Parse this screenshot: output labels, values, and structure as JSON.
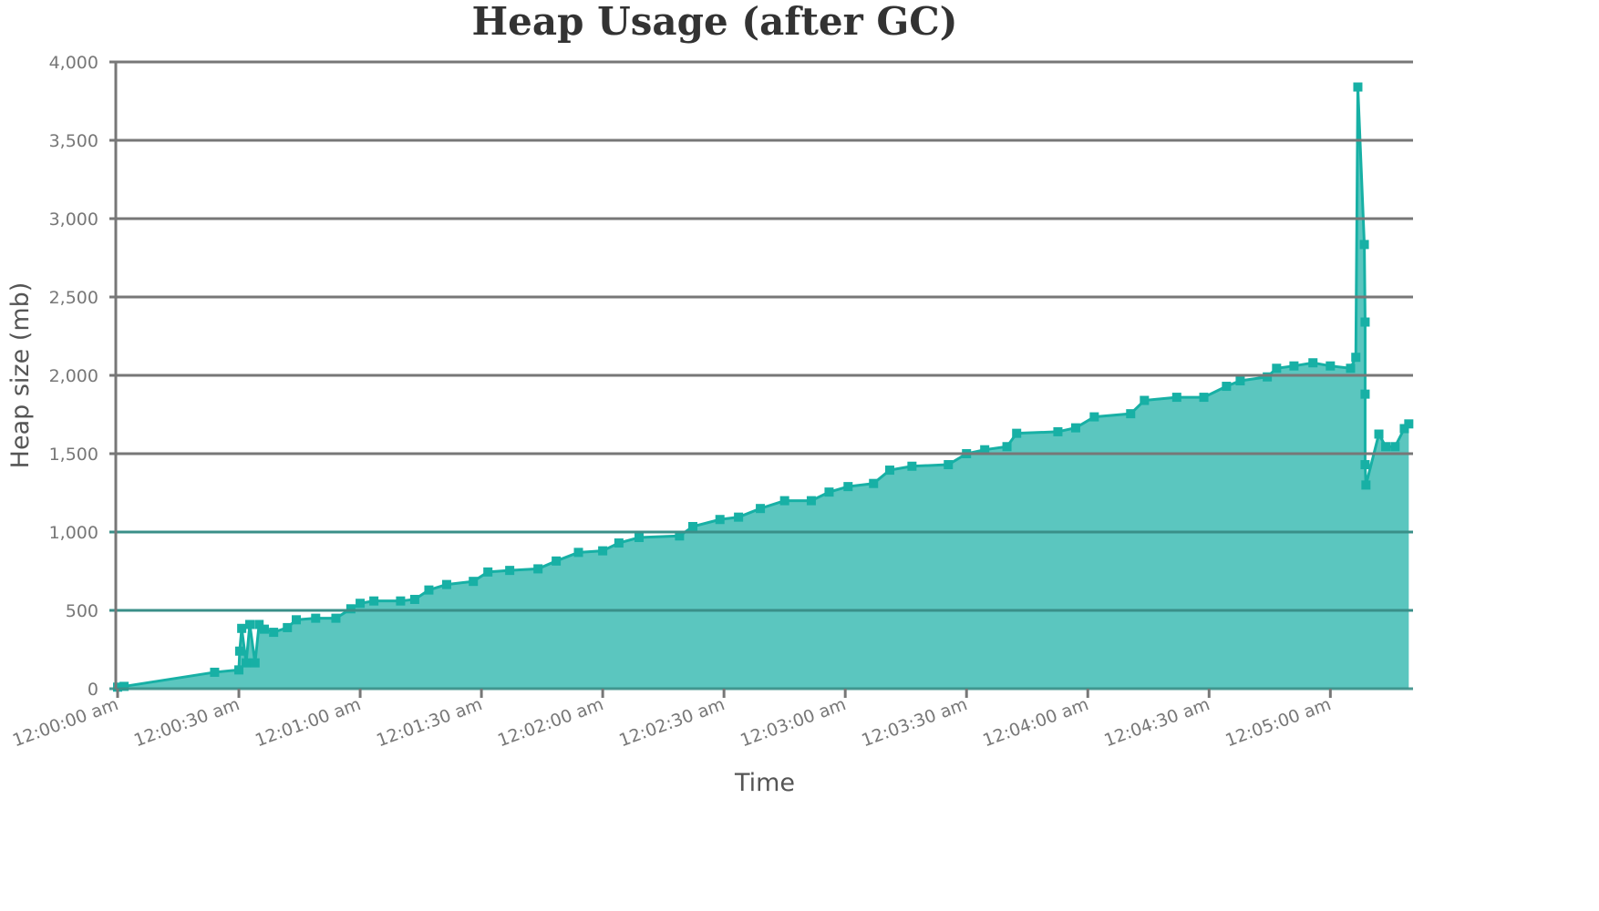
{
  "chart_data": {
    "type": "area",
    "title": "Heap Usage (after GC)",
    "xlabel": "Time",
    "ylabel": "Heap size (mb)",
    "x": [
      0,
      1.6,
      24,
      30,
      30.2,
      30.7,
      31.8,
      32.7,
      34,
      35,
      36.3,
      38.6,
      42,
      44.2,
      49,
      54,
      57.7,
      60,
      63.4,
      70,
      73.5,
      77,
      81.4,
      88,
      91.6,
      97,
      104,
      108.5,
      114,
      120,
      124,
      129,
      139,
      142.3,
      149,
      153.6,
      159,
      165,
      171.6,
      176,
      180.7,
      187,
      191,
      196.5,
      205.5,
      210,
      214.5,
      220,
      222.4,
      232.6,
      237,
      241.6,
      250.6,
      254,
      262,
      268.7,
      274.3,
      277.7,
      284.4,
      286.7,
      291,
      295.7,
      300,
      305,
      306.3,
      306.8,
      308.4,
      308.6,
      308.6,
      308.6,
      308.8,
      312,
      313.7,
      316,
      318.3,
      319.4
    ],
    "series": [
      {
        "name": "Heap size (mb)",
        "color": "#17b0a5",
        "fill": "#5bc6bf",
        "values": [
          10,
          15,
          105,
          120,
          240,
          385,
          165,
          410,
          165,
          410,
          380,
          360,
          390,
          440,
          450,
          450,
          510,
          545,
          560,
          560,
          570,
          630,
          665,
          685,
          745,
          755,
          765,
          815,
          870,
          880,
          930,
          965,
          975,
          1035,
          1080,
          1095,
          1150,
          1200,
          1200,
          1255,
          1290,
          1310,
          1395,
          1420,
          1430,
          1500,
          1525,
          1545,
          1630,
          1640,
          1665,
          1735,
          1755,
          1840,
          1860,
          1860,
          1930,
          1965,
          1990,
          2045,
          2060,
          2080,
          2060,
          2045,
          2115,
          3840,
          2835,
          2340,
          1880,
          1430,
          1300,
          1625,
          1545,
          1545,
          1660,
          1690
        ]
      }
    ],
    "xlim": [
      0,
      320
    ],
    "xticks": [
      {
        "value": 0,
        "label": "12:00:00 am"
      },
      {
        "value": 30,
        "label": "12:00:30 am"
      },
      {
        "value": 60,
        "label": "12:01:00 am"
      },
      {
        "value": 90,
        "label": "12:01:30 am"
      },
      {
        "value": 120,
        "label": "12:02:00 am"
      },
      {
        "value": 150,
        "label": "12:02:30 am"
      },
      {
        "value": 180,
        "label": "12:03:00 am"
      },
      {
        "value": 210,
        "label": "12:03:30 am"
      },
      {
        "value": 240,
        "label": "12:04:00 am"
      },
      {
        "value": 270,
        "label": "12:04:30 am"
      },
      {
        "value": 300,
        "label": "12:05:00 am"
      }
    ],
    "ylim": [
      0,
      4000
    ],
    "yticks": [
      0,
      500,
      {
        "value": 1000,
        "label": "1,000"
      },
      {
        "value": 1500,
        "label": "1,500"
      },
      {
        "value": 2000,
        "label": "2,000"
      },
      {
        "value": 2500,
        "label": "2,500"
      },
      {
        "value": 3000,
        "label": "3,000"
      },
      {
        "value": 3500,
        "label": "3,500"
      },
      {
        "value": 4000,
        "label": "4,000"
      }
    ],
    "grid": true
  }
}
